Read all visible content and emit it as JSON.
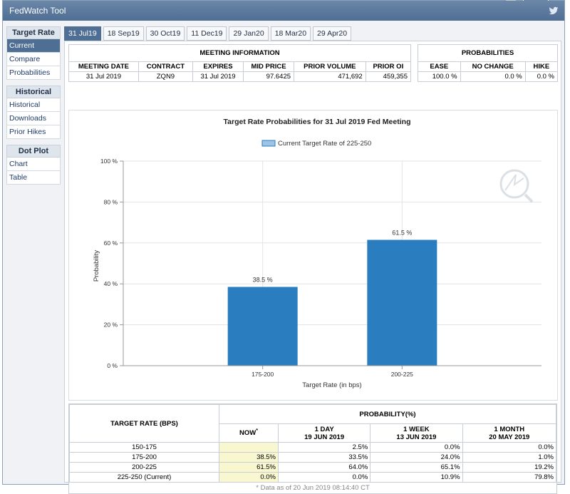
{
  "window": {
    "title": "FedWatch Tool"
  },
  "colors": {
    "titlebar": "#4f6e93",
    "bar": "#2a7ec0",
    "accent_yellow": "#f8f7cf"
  },
  "sidebar": {
    "sections": [
      {
        "heading": "Target Rate",
        "items": [
          "Current",
          "Compare",
          "Probabilities"
        ]
      },
      {
        "heading": "Historical",
        "items": [
          "Historical",
          "Downloads",
          "Prior Hikes"
        ]
      },
      {
        "heading": "Dot Plot",
        "items": [
          "Chart",
          "Table"
        ]
      }
    ],
    "active": "Current"
  },
  "tabs": [
    "31 Jul19",
    "18 Sep19",
    "30 Oct19",
    "11 Dec19",
    "29 Jan20",
    "18 Mar20",
    "29 Apr20"
  ],
  "meeting_info": {
    "heading": "MEETING INFORMATION",
    "headers": [
      "MEETING DATE",
      "CONTRACT",
      "EXPIRES",
      "MID PRICE",
      "PRIOR VOLUME",
      "PRIOR OI"
    ],
    "row": [
      "31 Jul 2019",
      "ZQN9",
      "31 Jul 2019",
      "97.6425",
      "471,692",
      "459,355"
    ]
  },
  "probabilities": {
    "heading": "PROBABILITIES",
    "headers": [
      "EASE",
      "NO CHANGE",
      "HIKE"
    ],
    "row": [
      "100.0 %",
      "0.0 %",
      "0.0 %"
    ]
  },
  "chart_data": {
    "type": "bar",
    "title": "Target Rate Probabilities for 31 Jul 2019 Fed Meeting",
    "legend": "Current Target Rate of 225-250",
    "categories": [
      "175-200",
      "200-225"
    ],
    "values": [
      38.5,
      61.5
    ],
    "data_labels": [
      "38.5 %",
      "61.5 %"
    ],
    "xlabel": "Target Rate (in bps)",
    "ylabel": "Probability",
    "ylim": [
      0,
      100
    ],
    "yticks": [
      "0 %",
      "20 %",
      "40 %",
      "60 %",
      "80 %",
      "100 %"
    ],
    "grid": true,
    "legend_position": "top-center"
  },
  "prob_table": {
    "col_target": "TARGET RATE (BPS)",
    "col_prob": "PROBABILITY(%)",
    "col_now": "NOW",
    "now_mark": "*",
    "cols": [
      {
        "label": "1 DAY",
        "date": "19 JUN 2019"
      },
      {
        "label": "1 WEEK",
        "date": "13 JUN 2019"
      },
      {
        "label": "1 MONTH",
        "date": "20 MAY 2019"
      }
    ],
    "rows": [
      {
        "rate": "150-175",
        "now": "",
        "d1": "2.5%",
        "w1": "0.0%",
        "m1": "0.0%"
      },
      {
        "rate": "175-200",
        "now": "38.5%",
        "d1": "33.5%",
        "w1": "24.0%",
        "m1": "1.0%"
      },
      {
        "rate": "200-225",
        "now": "61.5%",
        "d1": "64.0%",
        "w1": "65.1%",
        "m1": "19.2%"
      },
      {
        "rate": "225-250 (Current)",
        "now": "0.0%",
        "d1": "0.0%",
        "w1": "10.9%",
        "m1": "79.8%"
      }
    ],
    "footnote": "* Data as of 20 Jun 2019 08:14:40 CT"
  }
}
